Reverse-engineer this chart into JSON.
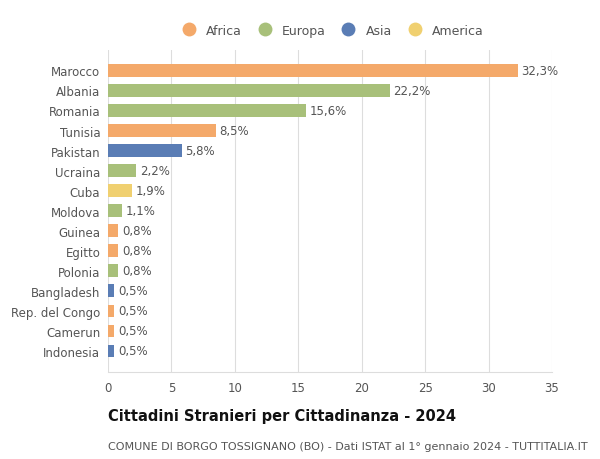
{
  "countries": [
    "Marocco",
    "Albania",
    "Romania",
    "Tunisia",
    "Pakistan",
    "Ucraina",
    "Cuba",
    "Moldova",
    "Guinea",
    "Egitto",
    "Polonia",
    "Bangladesh",
    "Rep. del Congo",
    "Camerun",
    "Indonesia"
  ],
  "values": [
    32.3,
    22.2,
    15.6,
    8.5,
    5.8,
    2.2,
    1.9,
    1.1,
    0.8,
    0.8,
    0.8,
    0.5,
    0.5,
    0.5,
    0.5
  ],
  "labels": [
    "32,3%",
    "22,2%",
    "15,6%",
    "8,5%",
    "5,8%",
    "2,2%",
    "1,9%",
    "1,1%",
    "0,8%",
    "0,8%",
    "0,8%",
    "0,5%",
    "0,5%",
    "0,5%",
    "0,5%"
  ],
  "continents": [
    "Africa",
    "Europa",
    "Europa",
    "Africa",
    "Asia",
    "Europa",
    "America",
    "Europa",
    "Africa",
    "Africa",
    "Europa",
    "Asia",
    "Africa",
    "Africa",
    "Asia"
  ],
  "continent_colors": {
    "Africa": "#F4A96A",
    "Europa": "#A8C07A",
    "Asia": "#5A7DB5",
    "America": "#F0D070"
  },
  "legend_order": [
    "Africa",
    "Europa",
    "Asia",
    "America"
  ],
  "title": "Cittadini Stranieri per Cittadinanza - 2024",
  "subtitle": "COMUNE DI BORGO TOSSIGNANO (BO) - Dati ISTAT al 1° gennaio 2024 - TUTTITALIA.IT",
  "xlim": [
    0,
    35
  ],
  "xticks": [
    0,
    5,
    10,
    15,
    20,
    25,
    30,
    35
  ],
  "background_color": "#ffffff",
  "grid_color": "#dddddd",
  "bar_height": 0.62,
  "label_fontsize": 8.5,
  "title_fontsize": 10.5,
  "subtitle_fontsize": 8,
  "tick_fontsize": 8.5,
  "legend_fontsize": 9
}
